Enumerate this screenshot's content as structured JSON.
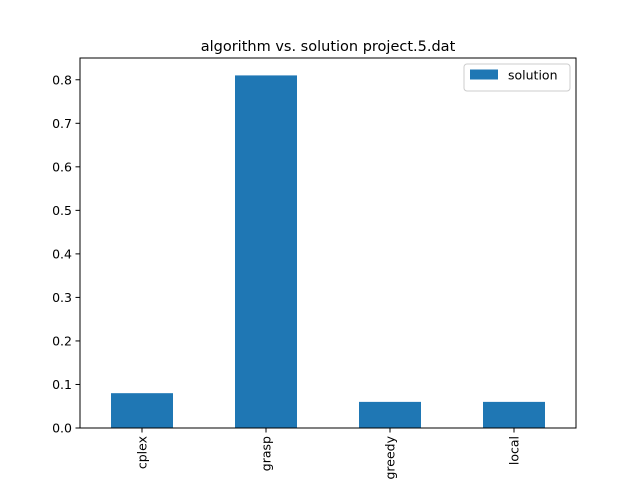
{
  "chart_data": {
    "type": "bar",
    "title": "algorithm vs. solution project.5.dat",
    "xlabel": "",
    "ylabel": "",
    "categories": [
      "cplex",
      "grasp",
      "greedy",
      "local"
    ],
    "series": [
      {
        "name": "solution",
        "values": [
          0.08,
          0.81,
          0.06,
          0.06
        ],
        "color": "#1f77b4"
      }
    ],
    "ylim": [
      0,
      0.85
    ],
    "yticks": [
      0.0,
      0.1,
      0.2,
      0.3,
      0.4,
      0.5,
      0.6,
      0.7,
      0.8
    ],
    "ytick_labels": [
      "0.0",
      "0.1",
      "0.2",
      "0.3",
      "0.4",
      "0.5",
      "0.6",
      "0.7",
      "0.8"
    ],
    "xtick_rotation": "vertical",
    "grid": false,
    "legend": {
      "placement": "upper-right",
      "label": "solution"
    }
  }
}
